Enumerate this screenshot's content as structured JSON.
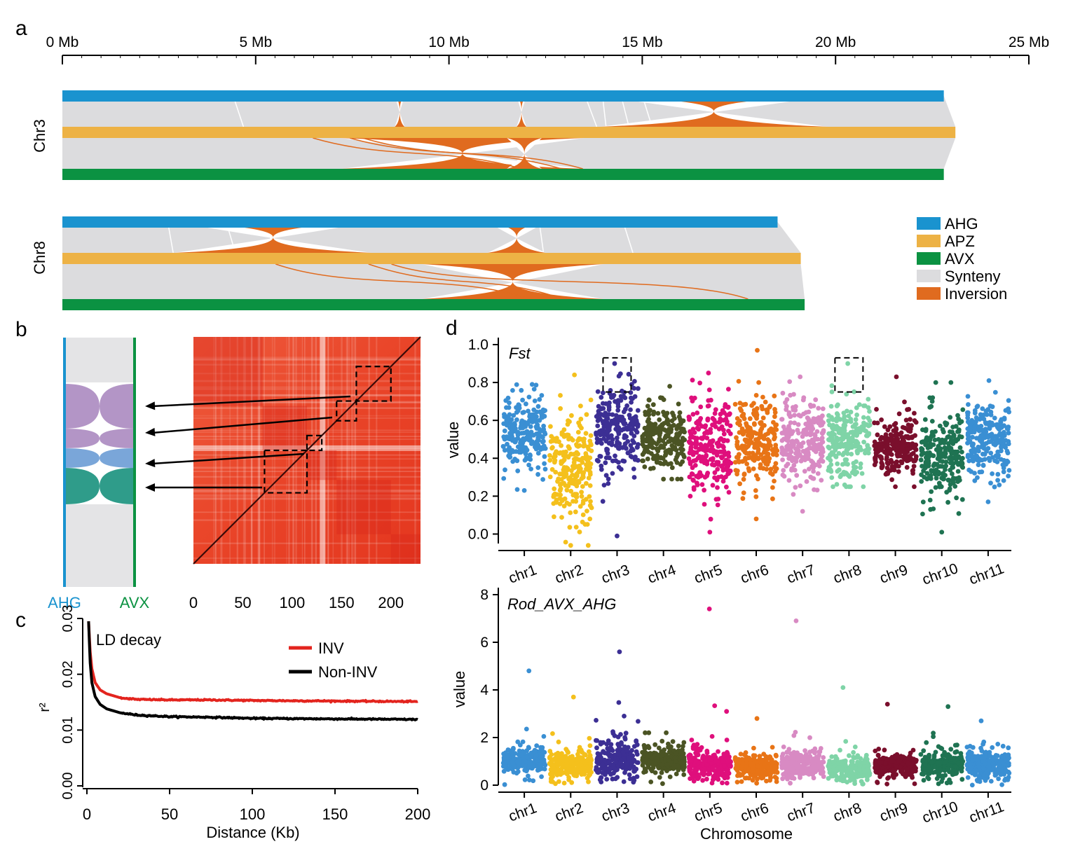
{
  "panels": {
    "a": "a",
    "b": "b",
    "c": "c",
    "d": "d"
  },
  "colors": {
    "AHG": "#1a93cf",
    "APZ": "#edb245",
    "AVX": "#0b9242",
    "synteny": "#dcdcde",
    "inversion": "#e06b1f",
    "ld_inv": "#e3241e",
    "ld_noninv": "#000000",
    "b_purple": "#b395c6",
    "b_blue": "#7aa6d9",
    "b_teal": "#2f9c8a"
  },
  "panel_a": {
    "scale_ticks": [
      "0 Mb",
      "5 Mb",
      "10 Mb",
      "15 Mb",
      "20 Mb",
      "25 Mb"
    ],
    "scale_max_mb": 25,
    "chromosomes": [
      {
        "name": "Chr3",
        "lengths_mb": {
          "AHG": 22.8,
          "APZ": 23.1,
          "AVX": 22.8
        },
        "inversions_ahg_apz_mb": [
          [
            8.6,
            8.85
          ],
          [
            11.75,
            12.0
          ],
          [
            13.9,
            19.8
          ]
        ],
        "inversions_apz_avx_mb": [
          [
            7.2,
            13.5
          ],
          [
            11.5,
            12.4
          ]
        ]
      },
      {
        "name": "Chr8",
        "lengths_mb": {
          "AHG": 18.5,
          "APZ": 19.1,
          "AVX": 19.2
        },
        "inversions_ahg_apz_mb": [
          [
            2.9,
            8.0
          ],
          [
            11.0,
            12.5
          ]
        ],
        "inversions_apz_avx_mb": [
          [
            9.3,
            14.0
          ]
        ]
      }
    ],
    "legend": [
      "AHG",
      "APZ",
      "AVX",
      "Synteny",
      "Inversion"
    ]
  },
  "panel_b": {
    "left_label": "AHG",
    "right_label": "AVX",
    "heatmap_ticks": [
      "0",
      "50",
      "100",
      "150",
      "200"
    ],
    "heatmap_max": 230,
    "boxes": [
      [
        165,
        200
      ],
      [
        145,
        165
      ],
      [
        115,
        130
      ],
      [
        72,
        115
      ]
    ]
  },
  "panel_c": {
    "title": "LD decay",
    "ylabel": "r²",
    "xlabel": "Distance (Kb)",
    "xticks": [
      "0",
      "50",
      "100",
      "150",
      "200"
    ],
    "yticks": [
      "0.00",
      "0.01",
      "0.02",
      "0.03"
    ],
    "xlim": [
      0,
      200
    ],
    "ylim": [
      0,
      0.03
    ],
    "legend": [
      "INV",
      "Non-INV"
    ]
  },
  "chart_data": [
    {
      "type": "line",
      "title": "LD decay",
      "xlabel": "Distance (Kb)",
      "ylabel": "r²",
      "xlim": [
        0,
        200
      ],
      "ylim": [
        0,
        0.03
      ],
      "legend_position": "top-right",
      "series": [
        {
          "name": "INV",
          "x": [
            1,
            2,
            3,
            5,
            8,
            12,
            20,
            30,
            50,
            75,
            100,
            150,
            200
          ],
          "values": [
            0.0295,
            0.024,
            0.021,
            0.0185,
            0.0172,
            0.0165,
            0.0158,
            0.0155,
            0.0154,
            0.0154,
            0.0153,
            0.0152,
            0.0151
          ]
        },
        {
          "name": "Non-INV",
          "x": [
            1,
            2,
            3,
            5,
            8,
            12,
            20,
            30,
            50,
            75,
            100,
            150,
            200
          ],
          "values": [
            0.0295,
            0.022,
            0.0185,
            0.016,
            0.0146,
            0.0138,
            0.0131,
            0.0127,
            0.0124,
            0.0123,
            0.0121,
            0.012,
            0.0119
          ]
        }
      ]
    },
    {
      "type": "scatter",
      "title": "Fst",
      "ylabel": "value",
      "ylim": [
        -0.05,
        1.0
      ],
      "yticks": [
        "0.0",
        "0.2",
        "0.4",
        "0.6",
        "0.8",
        "1.0"
      ],
      "categories": [
        "chr1",
        "chr2",
        "chr3",
        "chr4",
        "chr5",
        "chr6",
        "chr7",
        "chr8",
        "chr9",
        "chr10",
        "chr11"
      ],
      "series": [
        {
          "name": "chr1",
          "color": "#3a8fd3",
          "median": 0.52,
          "spread": 0.1,
          "min": 0.23,
          "max": 0.79
        },
        {
          "name": "chr2",
          "color": "#f4c01c",
          "median": 0.35,
          "spread": 0.15,
          "min": -0.06,
          "max": 0.84
        },
        {
          "name": "chr3",
          "color": "#3c2f94",
          "median": 0.56,
          "spread": 0.12,
          "min": -0.01,
          "max": 0.9
        },
        {
          "name": "chr4",
          "color": "#4b5424",
          "median": 0.51,
          "spread": 0.08,
          "min": 0.29,
          "max": 0.78
        },
        {
          "name": "chr5",
          "color": "#df0f7c",
          "median": 0.46,
          "spread": 0.13,
          "min": 0.01,
          "max": 0.85
        },
        {
          "name": "chr6",
          "color": "#e87416",
          "median": 0.48,
          "spread": 0.11,
          "min": 0.08,
          "max": 0.97
        },
        {
          "name": "chr7",
          "color": "#d88ac3",
          "median": 0.49,
          "spread": 0.11,
          "min": 0.12,
          "max": 0.83
        },
        {
          "name": "chr8",
          "color": "#7fd4a7",
          "median": 0.5,
          "spread": 0.1,
          "min": 0.25,
          "max": 0.9
        },
        {
          "name": "chr9",
          "color": "#7a0f2c",
          "median": 0.46,
          "spread": 0.08,
          "min": 0.25,
          "max": 0.83
        },
        {
          "name": "chr10",
          "color": "#1f7352",
          "median": 0.4,
          "spread": 0.11,
          "min": 0.01,
          "max": 0.8
        },
        {
          "name": "chr11",
          "color": "#3a8fd3",
          "median": 0.5,
          "spread": 0.1,
          "min": 0.17,
          "max": 0.81
        }
      ],
      "highlight_boxes": [
        {
          "chromosome": "chr3",
          "y": [
            0.75,
            0.93
          ]
        },
        {
          "chromosome": "chr8",
          "y": [
            0.75,
            0.93
          ]
        }
      ]
    },
    {
      "type": "scatter",
      "title": "Rod_AVX_AHG",
      "xlabel": "Chromosome",
      "ylabel": "value",
      "ylim": [
        0,
        8
      ],
      "yticks": [
        "0",
        "2",
        "4",
        "6",
        "8"
      ],
      "categories": [
        "chr1",
        "chr2",
        "chr3",
        "chr4",
        "chr5",
        "chr6",
        "chr7",
        "chr8",
        "chr9",
        "chr10",
        "chr11"
      ],
      "series": [
        {
          "name": "chr1",
          "color": "#3a8fd3",
          "median": 1.0,
          "spread": 0.25,
          "max": 4.8
        },
        {
          "name": "chr2",
          "color": "#f4c01c",
          "median": 0.85,
          "spread": 0.3,
          "max": 3.7
        },
        {
          "name": "chr3",
          "color": "#3c2f94",
          "median": 1.1,
          "spread": 0.4,
          "max": 5.6
        },
        {
          "name": "chr4",
          "color": "#4b5424",
          "median": 1.05,
          "spread": 0.25,
          "max": 2.2
        },
        {
          "name": "chr5",
          "color": "#df0f7c",
          "median": 0.85,
          "spread": 0.3,
          "max": 7.4
        },
        {
          "name": "chr6",
          "color": "#e87416",
          "median": 0.75,
          "spread": 0.25,
          "max": 2.8
        },
        {
          "name": "chr7",
          "color": "#d88ac3",
          "median": 0.85,
          "spread": 0.3,
          "max": 6.9
        },
        {
          "name": "chr8",
          "color": "#7fd4a7",
          "median": 0.65,
          "spread": 0.25,
          "max": 4.1
        },
        {
          "name": "chr9",
          "color": "#7a0f2c",
          "median": 0.85,
          "spread": 0.2,
          "max": 3.4
        },
        {
          "name": "chr10",
          "color": "#1f7352",
          "median": 0.85,
          "spread": 0.25,
          "max": 3.3
        },
        {
          "name": "chr11",
          "color": "#3a8fd3",
          "median": 0.85,
          "spread": 0.3,
          "max": 2.7
        }
      ]
    }
  ]
}
